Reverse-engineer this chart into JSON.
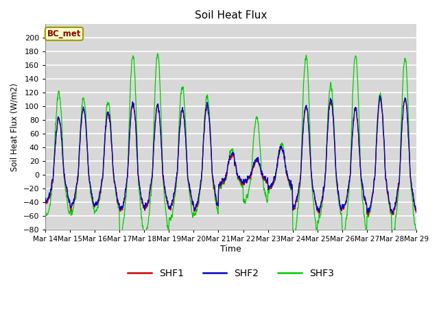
{
  "title": "Soil Heat Flux",
  "ylabel": "Soil Heat Flux (W/m2)",
  "xlabel": "Time",
  "ylim": [
    -80,
    220
  ],
  "yticks": [
    -80,
    -60,
    -40,
    -20,
    0,
    20,
    40,
    60,
    80,
    100,
    120,
    140,
    160,
    180,
    200
  ],
  "colors": {
    "SHF1": "#cc0000",
    "SHF2": "#0000cc",
    "SHF3": "#00cc00"
  },
  "legend_label": "BC_met",
  "fig_bg": "#ffffff",
  "plot_bg": "#d8d8d8",
  "grid_color": "#ffffff",
  "start_day": 14,
  "end_day": 29,
  "n_days": 15,
  "points_per_day": 144
}
